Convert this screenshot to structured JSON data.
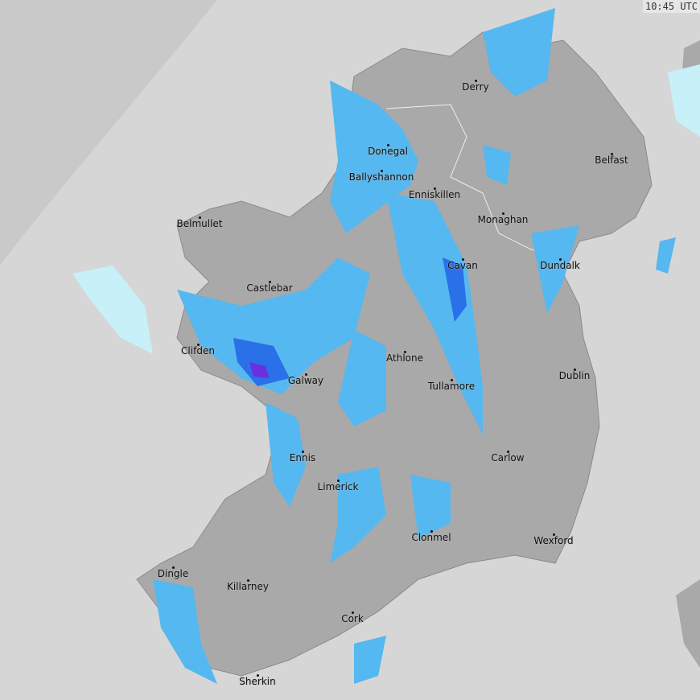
{
  "timestamp": "10:45 UTC",
  "colors": {
    "sea": "#d6d6d6",
    "no_coverage": "#c9c9c9",
    "land": "#a9a9a9",
    "rain_light": "#c8f0f8",
    "rain_mid": "#55b8f0",
    "rain_heavy": "#2a70e8",
    "rain_intense": "#6a30e0"
  },
  "towns": [
    {
      "name": "Derry"
    },
    {
      "name": "Donegal"
    },
    {
      "name": "Ballyshannon"
    },
    {
      "name": "Enniskillen"
    },
    {
      "name": "Belfast"
    },
    {
      "name": "Monaghan"
    },
    {
      "name": "Belmullet"
    },
    {
      "name": "Cavan"
    },
    {
      "name": "Dundalk"
    },
    {
      "name": "Castlebar"
    },
    {
      "name": "Athlone"
    },
    {
      "name": "Clifden"
    },
    {
      "name": "Galway"
    },
    {
      "name": "Dublin"
    },
    {
      "name": "Tullamore"
    },
    {
      "name": "Ennis"
    },
    {
      "name": "Carlow"
    },
    {
      "name": "Limerick"
    },
    {
      "name": "Clonmel"
    },
    {
      "name": "Wexford"
    },
    {
      "name": "Dingle"
    },
    {
      "name": "Killarney"
    },
    {
      "name": "Cork"
    },
    {
      "name": "Sherkin"
    }
  ]
}
